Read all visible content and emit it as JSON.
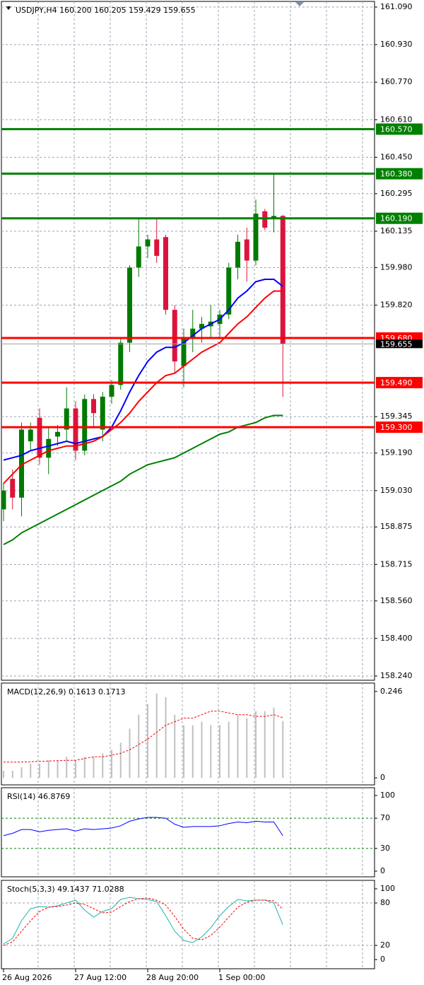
{
  "chart_data": [
    {
      "type": "candlestick",
      "title": "USDJPY,H4  160.200 160.205 159.429 159.655",
      "categories": [
        "26 Aug 2026",
        null,
        null,
        null,
        null,
        null,
        null,
        null,
        "27 Aug 12:00",
        null,
        null,
        null,
        null,
        null,
        null,
        null,
        "28 Aug 20:00",
        null,
        null,
        null,
        null,
        null,
        null,
        null,
        "1 Sep 00:00",
        null,
        null,
        null,
        null,
        null,
        null,
        null
      ],
      "open": [
        158.95,
        159.08,
        159.0,
        159.24,
        159.34,
        159.17,
        159.26,
        159.29,
        159.38,
        159.2,
        159.42,
        159.29,
        159.43,
        159.48,
        159.66,
        159.98,
        160.07,
        160.1,
        160.11,
        159.8,
        159.56,
        159.68,
        159.72,
        159.73,
        159.74,
        159.78,
        159.98,
        160.1,
        160.01,
        160.22,
        160.19,
        160.2
      ],
      "high": [
        159.06,
        159.12,
        159.32,
        159.32,
        159.38,
        159.3,
        159.31,
        159.47,
        159.41,
        159.44,
        159.44,
        159.45,
        159.5,
        159.68,
        159.99,
        160.19,
        160.12,
        160.19,
        160.12,
        159.82,
        159.72,
        159.8,
        159.77,
        159.82,
        159.8,
        160.0,
        160.12,
        160.15,
        160.27,
        160.23,
        160.38,
        160.205
      ],
      "low": [
        158.9,
        158.95,
        158.92,
        159.2,
        159.14,
        159.1,
        159.22,
        159.24,
        159.16,
        159.18,
        159.3,
        159.24,
        159.4,
        159.46,
        159.62,
        159.94,
        160.02,
        160.0,
        159.78,
        159.53,
        159.47,
        159.62,
        159.66,
        159.68,
        159.68,
        159.76,
        159.93,
        159.92,
        159.99,
        160.14,
        160.13,
        159.429
      ],
      "close": [
        159.03,
        159.0,
        159.29,
        159.29,
        159.17,
        159.25,
        159.28,
        159.38,
        159.2,
        159.42,
        159.36,
        159.43,
        159.48,
        159.66,
        159.98,
        160.07,
        160.1,
        160.03,
        159.8,
        159.58,
        159.68,
        159.72,
        159.74,
        159.75,
        159.78,
        159.98,
        160.09,
        160.01,
        160.21,
        160.15,
        160.2,
        159.655
      ],
      "up_color": "#007a00",
      "down_color": "#dc143c",
      "series": [
        {
          "color": "#0000ff",
          "values": [
            159.16,
            159.17,
            159.18,
            159.2,
            159.21,
            159.22,
            159.23,
            159.24,
            159.23,
            159.24,
            159.25,
            159.26,
            159.3,
            159.37,
            159.45,
            159.52,
            159.58,
            159.62,
            159.64,
            159.64,
            159.66,
            159.69,
            159.72,
            159.74,
            159.76,
            159.8,
            159.85,
            159.88,
            159.92,
            159.93,
            159.93,
            159.9
          ]
        },
        {
          "color": "#ff0000",
          "values": [
            159.06,
            159.1,
            159.14,
            159.16,
            159.18,
            159.2,
            159.21,
            159.22,
            159.22,
            159.23,
            159.24,
            159.26,
            159.29,
            159.32,
            159.36,
            159.41,
            159.45,
            159.49,
            159.52,
            159.53,
            159.56,
            159.59,
            159.62,
            159.64,
            159.66,
            159.7,
            159.74,
            159.77,
            159.81,
            159.85,
            159.88,
            159.88
          ]
        },
        {
          "color": "#008000",
          "values": [
            158.8,
            158.82,
            158.85,
            158.87,
            158.89,
            158.91,
            158.93,
            158.95,
            158.97,
            158.99,
            159.01,
            159.03,
            159.05,
            159.07,
            159.1,
            159.12,
            159.14,
            159.15,
            159.16,
            159.17,
            159.19,
            159.21,
            159.23,
            159.25,
            159.27,
            159.28,
            159.3,
            159.31,
            159.32,
            159.34,
            159.35,
            159.35
          ]
        }
      ],
      "levels": [
        {
          "value": 160.57,
          "label": "160.570",
          "color": "#008000"
        },
        {
          "value": 160.38,
          "label": "160.380",
          "color": "#008000"
        },
        {
          "value": 160.19,
          "label": "160.190",
          "color": "#008000"
        },
        {
          "value": 159.68,
          "label": "159.680",
          "color": "#ff0000"
        },
        {
          "value": 159.49,
          "label": "159.490",
          "color": "#ff0000"
        },
        {
          "value": 159.3,
          "label": "159.300",
          "color": "#ff0000"
        }
      ],
      "ylim": [
        158.222,
        161.114
      ],
      "yticks": [
        {
          "value": 161.09,
          "label": "161.090"
        },
        {
          "value": 160.93,
          "label": "160.930"
        },
        {
          "value": 160.77,
          "label": "160.770"
        },
        {
          "value": 160.61,
          "label": "160.610"
        },
        {
          "value": 160.45,
          "label": "160.450"
        },
        160.295,
        160.135,
        {
          "value": 159.98,
          "label": "159.980"
        },
        {
          "value": 159.82,
          "label": "159.820"
        },
        159.345,
        {
          "value": 159.19,
          "label": "159.190"
        },
        {
          "value": 159.03,
          "label": "159.030"
        },
        158.875,
        158.715,
        {
          "value": 158.56,
          "label": "158.560"
        },
        {
          "value": 158.4,
          "label": "158.400"
        },
        {
          "value": 158.24,
          "label": "158.240"
        }
      ],
      "grid": true
    },
    {
      "type": "macd",
      "title": "MACD(12,26,9) 0.1613 0.1713",
      "color": "#c0c0c0",
      "values": [
        0.02,
        0.02,
        0.03,
        0.04,
        0.04,
        0.05,
        0.05,
        0.06,
        0.05,
        0.06,
        0.06,
        0.07,
        0.08,
        0.1,
        0.14,
        0.18,
        0.21,
        0.24,
        0.23,
        0.18,
        0.15,
        0.15,
        0.16,
        0.15,
        0.15,
        0.16,
        0.18,
        0.17,
        0.19,
        0.19,
        0.2,
        0.1613
      ],
      "series": [
        {
          "color": "#ff0000",
          "dashed": true,
          "values": [
            0.045,
            0.045,
            0.045,
            0.046,
            0.047,
            0.048,
            0.049,
            0.05,
            0.05,
            0.055,
            0.06,
            0.06,
            0.065,
            0.07,
            0.08,
            0.095,
            0.11,
            0.13,
            0.15,
            0.16,
            0.17,
            0.17,
            0.18,
            0.19,
            0.19,
            0.185,
            0.18,
            0.18,
            0.175,
            0.175,
            0.18,
            0.1713
          ]
        }
      ],
      "ylim": [
        -0.02,
        0.27
      ],
      "yticks": [
        0.246,
        0
      ],
      "grid": true
    },
    {
      "type": "line",
      "title": "RSI(14) 46.8769",
      "series": [
        {
          "color": "#0000ff",
          "values": [
            47,
            50,
            55,
            55,
            52,
            54,
            55,
            56,
            53,
            56,
            55,
            56,
            57,
            60,
            66,
            69,
            71,
            71,
            70,
            62,
            58,
            59,
            59,
            59,
            60,
            63,
            65,
            64,
            66,
            65,
            65,
            46.8769
          ]
        }
      ],
      "levels": [
        70,
        30
      ],
      "level_color": "#008000",
      "ylim": [
        -7.5,
        110.3
      ],
      "yticks": [
        100,
        70,
        30,
        0
      ],
      "grid": true
    },
    {
      "type": "line",
      "title": "Stoch(5,3,3) 49.1437 71.0288",
      "series": [
        {
          "color": "#20b2aa",
          "values": [
            22,
            30,
            55,
            72,
            75,
            74,
            76,
            80,
            84,
            70,
            60,
            68,
            72,
            85,
            88,
            86,
            85,
            82,
            62,
            40,
            27,
            24,
            32,
            45,
            62,
            75,
            85,
            83,
            84,
            84,
            80,
            49.1437
          ]
        },
        {
          "color": "#ff0000",
          "dashed": true,
          "values": [
            20,
            25,
            40,
            55,
            68,
            74,
            75,
            77,
            80,
            78,
            72,
            66,
            67,
            75,
            82,
            86,
            87,
            84,
            77,
            61,
            43,
            30,
            28,
            34,
            46,
            60,
            74,
            81,
            84,
            84,
            83,
            71.0288
          ]
        }
      ],
      "levels": [
        80,
        20
      ],
      "level_color": "#a0a0a0",
      "ylim": [
        -13,
        112
      ],
      "yticks": [
        100,
        80,
        20,
        0
      ],
      "grid": true
    }
  ]
}
